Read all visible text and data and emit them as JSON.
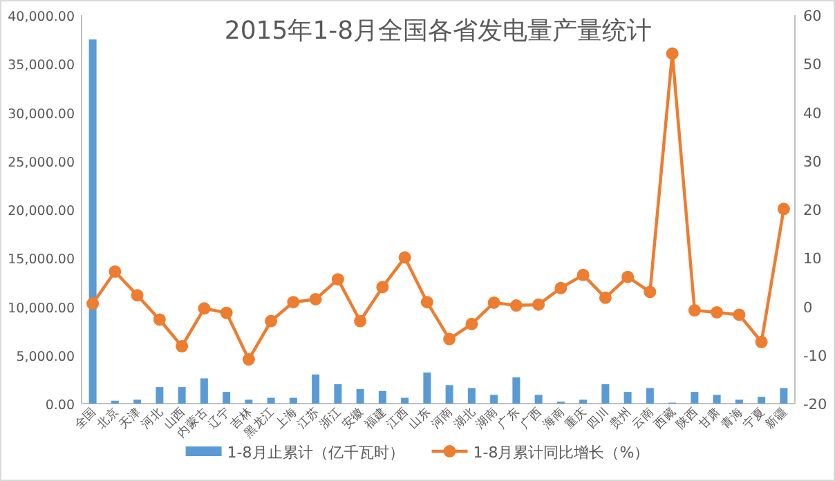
{
  "chart_data": {
    "type": "bar",
    "title": "2015年1-8月全国各省发电量产量统计",
    "categories": [
      "全国",
      "北京",
      "天津",
      "河北",
      "山西",
      "内蒙古",
      "辽宁",
      "吉林",
      "黑龙江",
      "上海",
      "江苏",
      "浙江",
      "安徽",
      "福建",
      "江西",
      "山东",
      "河南",
      "湖北",
      "湖南",
      "广东",
      "广西",
      "海南",
      "重庆",
      "四川",
      "贵州",
      "云南",
      "西藏",
      "陕西",
      "甘肃",
      "青海",
      "宁夏",
      "新疆"
    ],
    "series": [
      {
        "name": "1-8月止累计（亿千瓦时）",
        "color": "#5b9bd5",
        "values": [
          37500,
          300,
          400,
          1700,
          1700,
          2600,
          1200,
          400,
          600,
          600,
          3000,
          2000,
          1500,
          1300,
          600,
          3200,
          1900,
          1600,
          900,
          2700,
          900,
          200,
          400,
          2000,
          1200,
          1600,
          100,
          1200,
          900,
          400,
          700,
          1600
        ]
      },
      {
        "name": "1-8月累计同比增长（%）",
        "type": "line",
        "axis": "y2",
        "color": "#ed7d31",
        "values": [
          0.6,
          7.2,
          2.3,
          -2.7,
          -8.2,
          -0.4,
          -1.3,
          -10.9,
          -3.0,
          0.9,
          1.5,
          5.6,
          -3.0,
          4.0,
          10.1,
          0.9,
          -6.7,
          -3.6,
          0.8,
          0.2,
          0.4,
          3.8,
          6.5,
          1.8,
          6.1,
          3.0,
          52.1,
          -0.8,
          -1.2,
          -1.7,
          -7.3,
          20.1
        ]
      }
    ],
    "ylim": [
      0,
      40000
    ],
    "yticks": [
      {
        "value": 0,
        "label": "0.00"
      },
      {
        "value": 5000,
        "label": "5,000.00"
      },
      {
        "value": 10000,
        "label": "10,000.00"
      },
      {
        "value": 15000,
        "label": "15,000.00"
      },
      {
        "value": 20000,
        "label": "20,000.00"
      },
      {
        "value": 25000,
        "label": "25,000.00"
      },
      {
        "value": 30000,
        "label": "30,000.00"
      },
      {
        "value": 35000,
        "label": "35,000.00"
      },
      {
        "value": 40000,
        "label": "40,000.00"
      }
    ],
    "y2lim": [
      -20,
      60
    ],
    "y2ticks": [
      -20,
      -10,
      0,
      10,
      20,
      30,
      40,
      50,
      60
    ],
    "marker": "circle",
    "legend": "bottom"
  }
}
